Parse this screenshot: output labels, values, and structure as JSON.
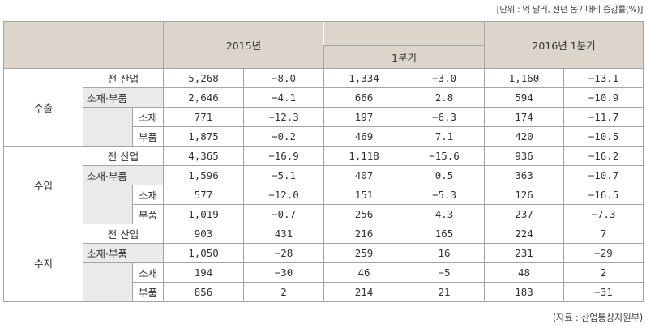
{
  "unit_note": "[단위 : 억 달러, 전년 동기대비 증감률(%)]",
  "source_note": "(자료 : 산업통상자원부)",
  "header": {
    "year_2015": "2015년",
    "q1": "1분기",
    "q1_2016": "2016년 1분기"
  },
  "groups": [
    {
      "label": "수출",
      "rows": [
        {
          "label": "전 산업",
          "values": [
            "5,268",
            "−8.0",
            "1,334",
            "−3.0",
            "1,160",
            "−13.1"
          ]
        },
        {
          "label": "소재·부품",
          "values": [
            "2,646",
            "−4.1",
            "666",
            "2.8",
            "594",
            "−10.9"
          ]
        },
        {
          "label": "소재",
          "values": [
            "771",
            "−12.3",
            "197",
            "−6.3",
            "174",
            "−11.7"
          ]
        },
        {
          "label": "부품",
          "values": [
            "1,875",
            "−0.2",
            "469",
            "7.1",
            "420",
            "−10.5"
          ]
        }
      ]
    },
    {
      "label": "수입",
      "rows": [
        {
          "label": "전 산업",
          "values": [
            "4,365",
            "−16.9",
            "1,118",
            "−15.6",
            "936",
            "−16.2"
          ]
        },
        {
          "label": "소재·부품",
          "values": [
            "1,596",
            "−5.1",
            "407",
            "0.5",
            "363",
            "−10.7"
          ]
        },
        {
          "label": "소재",
          "values": [
            "577",
            "−12.0",
            "151",
            "−5.3",
            "126",
            "−16.5"
          ]
        },
        {
          "label": "부품",
          "values": [
            "1,019",
            "−0.7",
            "256",
            "4.3",
            "237",
            "−7.3"
          ]
        }
      ]
    },
    {
      "label": "수지",
      "rows": [
        {
          "label": "전 산업",
          "values": [
            "903",
            "431",
            "216",
            "165",
            "224",
            "7"
          ]
        },
        {
          "label": "소재·부품",
          "values": [
            "1,050",
            "−28",
            "259",
            "16",
            "231",
            "−29"
          ]
        },
        {
          "label": "소재",
          "values": [
            "194",
            "−30",
            "46",
            "−5",
            "48",
            "2"
          ]
        },
        {
          "label": "부품",
          "values": [
            "856",
            "2",
            "214",
            "21",
            "183",
            "−31"
          ]
        }
      ]
    }
  ]
}
